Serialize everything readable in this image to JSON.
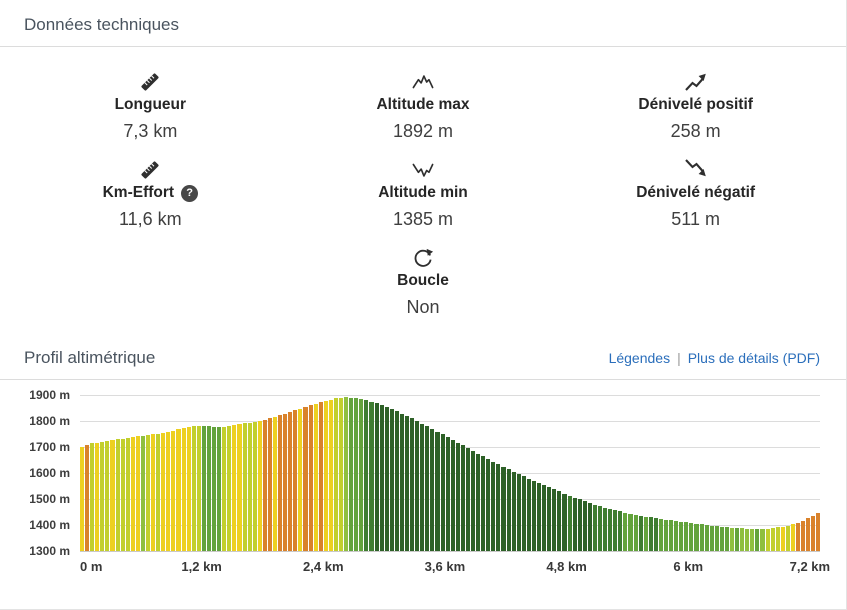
{
  "technical": {
    "title": "Données techniques",
    "help_glyph": "?",
    "stats": [
      {
        "id": "longueur",
        "icon": "ruler-icon",
        "label": "Longueur",
        "value": "7,3 km"
      },
      {
        "id": "altitude-max",
        "icon": "altitude-max-icon",
        "label": "Altitude max",
        "value": "1892 m"
      },
      {
        "id": "denivele-positif",
        "icon": "ascent-arrow-icon",
        "label": "Dénivelé positif",
        "value": "258 m"
      },
      {
        "id": "km-effort",
        "icon": "ruler-icon",
        "label": "Km-Effort",
        "value": "11,6 km",
        "help": true
      },
      {
        "id": "altitude-min",
        "icon": "altitude-min-icon",
        "label": "Altitude min",
        "value": "1385 m"
      },
      {
        "id": "denivele-negatif",
        "icon": "descent-arrow-icon",
        "label": "Dénivelé négatif",
        "value": "511 m"
      },
      {
        "id": "boucle",
        "icon": "loop-icon",
        "label": "Boucle",
        "value": "Non"
      }
    ]
  },
  "profile": {
    "title": "Profil altimétrique",
    "separator": "|",
    "links": [
      {
        "id": "legendes",
        "label": "Légendes"
      },
      {
        "id": "pdf",
        "label": "Plus de détails (PDF)"
      }
    ]
  },
  "chart_data": {
    "type": "area",
    "title": "Profil altimétrique",
    "xlabel": "",
    "ylabel": "",
    "x_unit": "km",
    "y_unit": "m",
    "xlim": [
      0,
      7.3
    ],
    "ylim": [
      1300,
      1900
    ],
    "grid": true,
    "y_ticks": [
      "1900 m",
      "1800 m",
      "1700 m",
      "1600 m",
      "1500 m",
      "1400 m",
      "1300 m"
    ],
    "x_ticks": [
      "0 m",
      "1,2 km",
      "2,4 km",
      "3,6 km",
      "4,8 km",
      "6 km",
      "7,2 km"
    ],
    "x_tick_values": [
      0,
      1.2,
      2.4,
      3.6,
      4.8,
      6,
      7.2
    ],
    "altitude_max": 1892,
    "altitude_min": 1385,
    "x": [
      0,
      0.1,
      0.2,
      0.3,
      0.4,
      0.5,
      0.6,
      0.7,
      0.8,
      0.9,
      1.0,
      1.1,
      1.2,
      1.3,
      1.4,
      1.5,
      1.6,
      1.7,
      1.8,
      1.9,
      2.0,
      2.1,
      2.2,
      2.3,
      2.4,
      2.5,
      2.6,
      2.7,
      2.8,
      2.9,
      3.0,
      3.1,
      3.2,
      3.3,
      3.4,
      3.5,
      3.6,
      3.7,
      3.8,
      3.9,
      4.0,
      4.1,
      4.2,
      4.3,
      4.4,
      4.5,
      4.6,
      4.7,
      4.8,
      4.9,
      5.0,
      5.1,
      5.2,
      5.3,
      5.4,
      5.5,
      5.6,
      5.7,
      5.8,
      5.9,
      6.0,
      6.1,
      6.2,
      6.3,
      6.4,
      6.5,
      6.6,
      6.7,
      6.8,
      6.9,
      7.0,
      7.1,
      7.2,
      7.3
    ],
    "elevation": [
      1698,
      1712,
      1719,
      1724,
      1731,
      1736,
      1743,
      1747,
      1753,
      1761,
      1770,
      1779,
      1784,
      1779,
      1776,
      1781,
      1789,
      1795,
      1802,
      1813,
      1825,
      1838,
      1851,
      1863,
      1876,
      1885,
      1892,
      1889,
      1883,
      1871,
      1857,
      1841,
      1824,
      1805,
      1785,
      1764,
      1743,
      1722,
      1701,
      1680,
      1659,
      1639,
      1620,
      1601,
      1583,
      1566,
      1549,
      1533,
      1517,
      1502,
      1488,
      1475,
      1464,
      1454,
      1446,
      1438,
      1431,
      1425,
      1419,
      1414,
      1409,
      1404,
      1399,
      1395,
      1391,
      1388,
      1386,
      1385,
      1387,
      1392,
      1400,
      1412,
      1430,
      1452
    ],
    "slope_colors": {
      "steep_ascent": "#d9822b",
      "ascent": "#edd021",
      "gentle_ascent": "#c2cf2d",
      "flat": "#8fbf3f",
      "gentle_descent": "#63a33c",
      "descent": "#3f7d31",
      "steep_descent": "#2e6128"
    }
  }
}
